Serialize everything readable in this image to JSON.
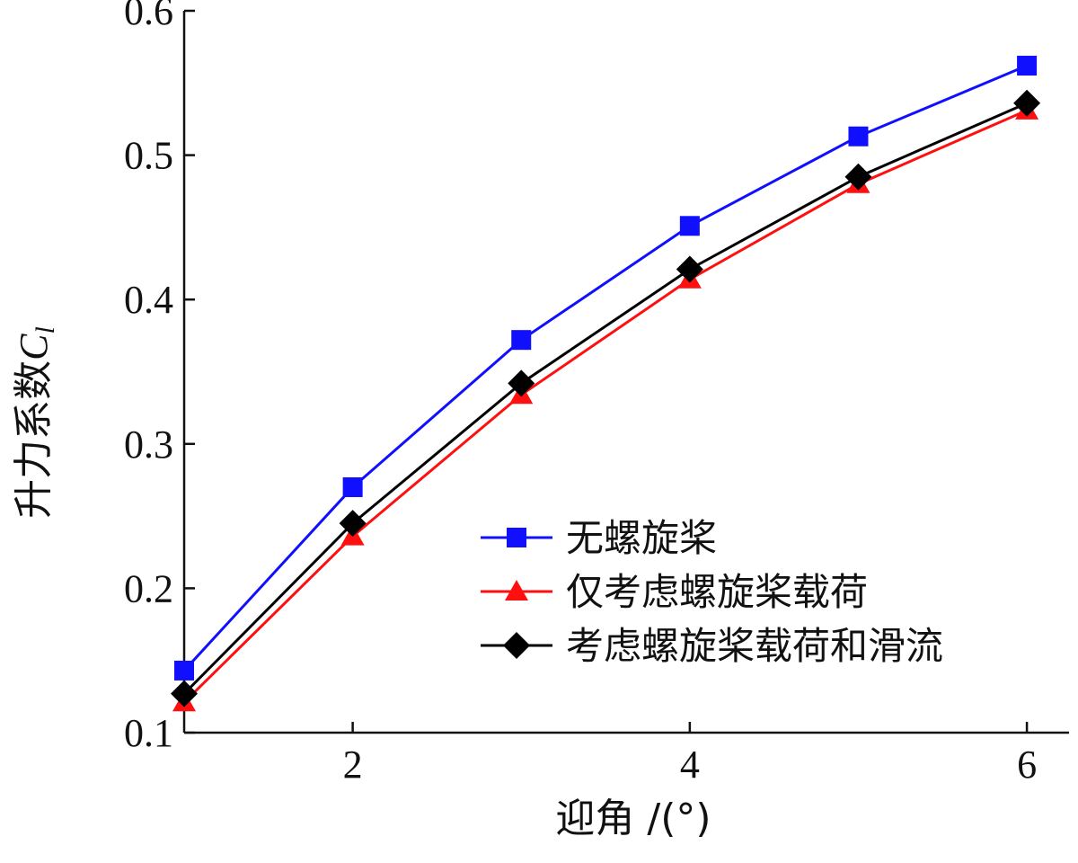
{
  "chart_data": {
    "type": "line",
    "xlabel": "迎角 /(°)",
    "ylabel_main": "升力系数",
    "ylabel_symbol": "C",
    "ylabel_subscript": "l",
    "x": [
      1,
      2,
      3,
      4,
      5,
      6
    ],
    "xlim": [
      1,
      6.25
    ],
    "ylim": [
      0.1,
      0.6
    ],
    "x_ticks": [
      2,
      4,
      6
    ],
    "y_ticks": [
      0.1,
      0.2,
      0.3,
      0.4,
      0.5,
      0.6
    ],
    "x_tick_labels": [
      "2",
      "4",
      "6"
    ],
    "y_tick_labels": [
      "0.1",
      "0.2",
      "0.3",
      "0.4",
      "0.5",
      "0.6"
    ],
    "grid": false,
    "legend_position": "lower-right",
    "series": [
      {
        "name": "无螺旋桨",
        "color": "#1010ff",
        "marker": "square",
        "values": [
          0.143,
          0.27,
          0.372,
          0.451,
          0.513,
          0.562
        ]
      },
      {
        "name": "仅考虑螺旋桨载荷",
        "color": "#ff1010",
        "marker": "triangle",
        "values": [
          0.121,
          0.236,
          0.334,
          0.414,
          0.48,
          0.531
        ]
      },
      {
        "name": "考虑螺旋桨载荷和滑流",
        "color": "#000000",
        "marker": "diamond",
        "values": [
          0.127,
          0.245,
          0.342,
          0.421,
          0.485,
          0.536
        ]
      }
    ]
  }
}
